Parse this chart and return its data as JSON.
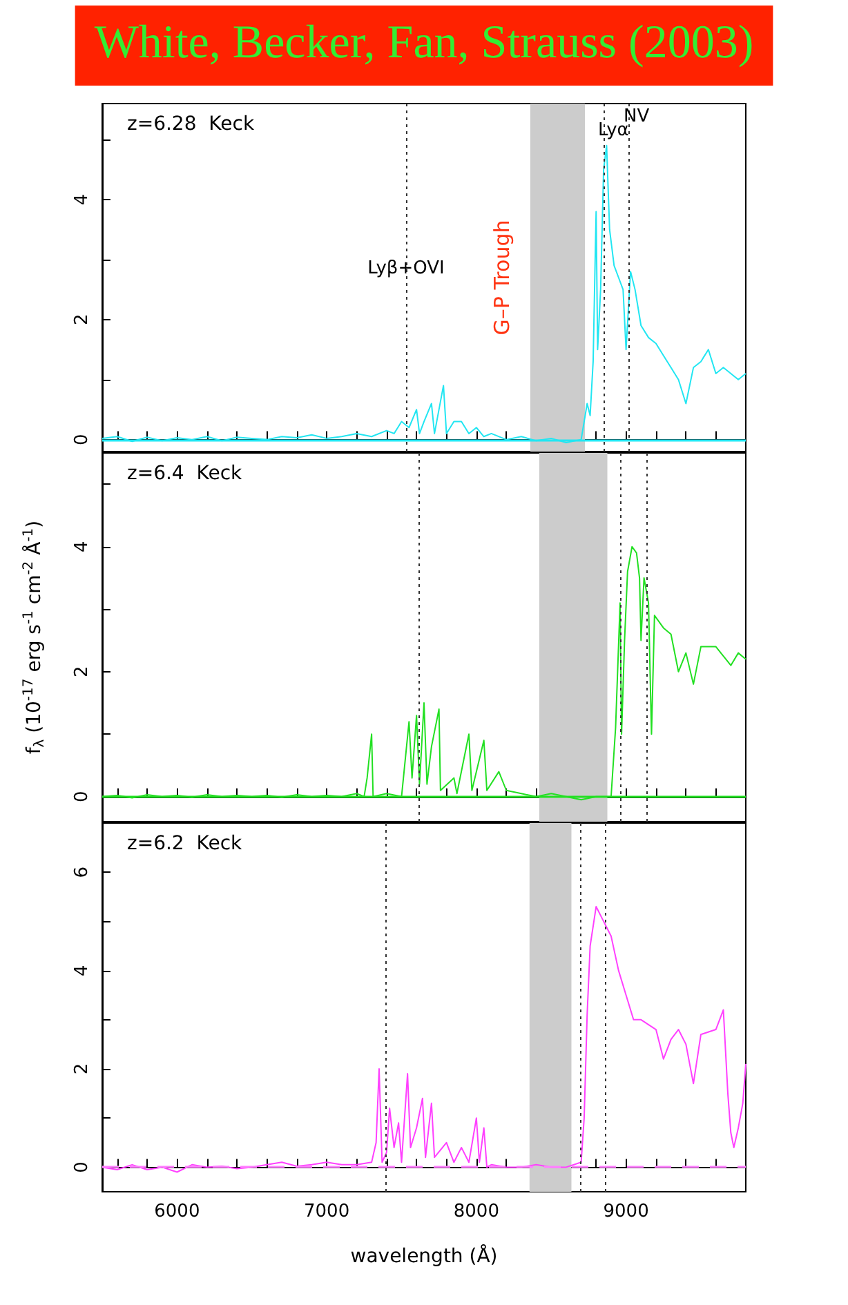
{
  "chart_data": [
    {
      "type": "line",
      "title": "White, Becker, Fan, Strauss (2003)",
      "annotations": [
        "z=6.28  Keck"
      ],
      "xlim": [
        5500,
        9800
      ],
      "xticks": [
        {
          "value": 5600,
          "label": null
        },
        {
          "value": 5800,
          "label": null
        },
        6000,
        {
          "value": 6200,
          "label": null
        },
        {
          "value": 6400,
          "label": null
        },
        {
          "value": 6600,
          "label": null
        },
        {
          "value": 6800,
          "label": null
        },
        7000,
        {
          "value": 7200,
          "label": null
        },
        {
          "value": 7400,
          "label": null
        },
        {
          "value": 7600,
          "label": null
        },
        {
          "value": 7800,
          "label": null
        },
        8000,
        {
          "value": 8200,
          "label": null
        },
        {
          "value": 8400,
          "label": null
        },
        {
          "value": 8600,
          "label": null
        },
        {
          "value": 8800,
          "label": null
        },
        9000,
        {
          "value": 9200,
          "label": null
        },
        {
          "value": 9400,
          "label": null
        },
        {
          "value": 9600,
          "label": null
        }
      ],
      "ylim": [
        -0.2,
        5.6
      ],
      "yticks": [
        0,
        {
          "value": 1,
          "label": null
        },
        2,
        {
          "value": 3,
          "label": null
        },
        4,
        {
          "value": 5,
          "label": null
        }
      ],
      "tick_labels": "y",
      "grid": false,
      "marker": "none",
      "line_style": "solid",
      "series": [
        {
          "color": "#22e6f2",
          "x": [
            5500,
            5600,
            5700,
            5800,
            5900,
            6000,
            6100,
            6200,
            6300,
            6400,
            6500,
            6600,
            6700,
            6800,
            6900,
            7000,
            7100,
            7200,
            7300,
            7400,
            7450,
            7500,
            7550,
            7600,
            7620,
            7650,
            7700,
            7720,
            7780,
            7800,
            7850,
            7900,
            7950,
            8000,
            8050,
            8100,
            8200,
            8300,
            8400,
            8500,
            8600,
            8700,
            8740,
            8760,
            8780,
            8800,
            8810,
            8830,
            8850,
            8870,
            8890,
            8920,
            8950,
            8980,
            9000,
            9030,
            9060,
            9100,
            9150,
            9200,
            9250,
            9300,
            9350,
            9400,
            9450,
            9500,
            9550,
            9600,
            9650,
            9700,
            9750,
            9800
          ],
          "values": [
            0.02,
            0.05,
            -0.03,
            0.04,
            -0.02,
            0.03,
            0.0,
            0.05,
            -0.02,
            0.04,
            0.02,
            0.0,
            0.05,
            0.03,
            0.08,
            0.02,
            0.05,
            0.1,
            0.05,
            0.15,
            0.1,
            0.3,
            0.2,
            0.5,
            0.1,
            0.3,
            0.6,
            0.1,
            0.9,
            0.1,
            0.3,
            0.3,
            0.1,
            0.2,
            0.05,
            0.1,
            0.0,
            0.05,
            -0.02,
            0.02,
            -0.05,
            0.0,
            0.6,
            0.4,
            1.3,
            3.8,
            1.5,
            2.5,
            4.5,
            4.9,
            3.5,
            2.9,
            2.7,
            2.5,
            1.5,
            2.8,
            2.5,
            1.9,
            1.7,
            1.6,
            1.4,
            1.2,
            1.0,
            0.6,
            1.2,
            1.3,
            1.5,
            1.1,
            1.2,
            1.1,
            1.0,
            1.1
          ]
        }
      ],
      "ref_lines": [
        {
          "axis": "x",
          "value": 7530,
          "label": "Lyβ+OVI",
          "color": "#333333",
          "line_style": "dotted"
        },
        {
          "axis": "x",
          "value": 8850,
          "label": "Lyα",
          "color": "#333333",
          "line_style": "dotted"
        },
        {
          "axis": "x",
          "value": 9020,
          "label": "NV",
          "color": "#333333",
          "line_style": "dotted"
        },
        {
          "axis": "y",
          "value": 0,
          "color": "#22e6f2",
          "line_style": "solid"
        }
      ],
      "bands": [
        {
          "axis": "x",
          "from": 8360,
          "to": 8725,
          "label": "G–P Trough",
          "color": "#cccccc"
        }
      ]
    },
    {
      "type": "line",
      "ylabel": "f$_{λ}$ (10$^{-17}$ erg s$^{-1}$ cm$^{-2}$ Å$^{-1}$)",
      "annotations": [
        "z=6.4  Keck"
      ],
      "xlim": [
        5500,
        9800
      ],
      "xticks": [
        {
          "value": 5600,
          "label": null
        },
        {
          "value": 5800,
          "label": null
        },
        6000,
        {
          "value": 6200,
          "label": null
        },
        {
          "value": 6400,
          "label": null
        },
        {
          "value": 6600,
          "label": null
        },
        {
          "value": 6800,
          "label": null
        },
        7000,
        {
          "value": 7200,
          "label": null
        },
        {
          "value": 7400,
          "label": null
        },
        {
          "value": 7600,
          "label": null
        },
        {
          "value": 7800,
          "label": null
        },
        8000,
        {
          "value": 8200,
          "label": null
        },
        {
          "value": 8400,
          "label": null
        },
        {
          "value": 8600,
          "label": null
        },
        {
          "value": 8800,
          "label": null
        },
        9000,
        {
          "value": 9200,
          "label": null
        },
        {
          "value": 9400,
          "label": null
        },
        {
          "value": 9600,
          "label": null
        }
      ],
      "ylim": [
        -0.4,
        5.5
      ],
      "yticks": [
        0,
        {
          "value": 1,
          "label": null
        },
        2,
        {
          "value": 3,
          "label": null
        },
        4,
        {
          "value": 5,
          "label": null
        }
      ],
      "tick_labels": "y",
      "grid": false,
      "marker": "none",
      "line_style": "solid",
      "series": [
        {
          "color": "#22e022",
          "x": [
            5500,
            5600,
            5700,
            5800,
            5900,
            6000,
            6100,
            6200,
            6300,
            6400,
            6500,
            6600,
            6700,
            6800,
            6900,
            7000,
            7100,
            7200,
            7250,
            7270,
            7300,
            7310,
            7400,
            7500,
            7550,
            7570,
            7600,
            7620,
            7650,
            7670,
            7700,
            7750,
            7760,
            7850,
            7870,
            7950,
            7970,
            8050,
            8070,
            8150,
            8200,
            8300,
            8400,
            8500,
            8600,
            8700,
            8800,
            8900,
            8930,
            8960,
            8970,
            8990,
            9010,
            9040,
            9070,
            9090,
            9100,
            9120,
            9150,
            9170,
            9190,
            9250,
            9300,
            9350,
            9400,
            9450,
            9500,
            9600,
            9700,
            9750,
            9800
          ],
          "values": [
            0.0,
            0.02,
            -0.02,
            0.03,
            0.0,
            0.02,
            -0.01,
            0.03,
            0.0,
            0.02,
            0.0,
            0.02,
            -0.01,
            0.03,
            0.0,
            0.02,
            0.0,
            0.05,
            0.0,
            0.3,
            1.0,
            0.0,
            0.05,
            0.0,
            1.2,
            0.3,
            1.3,
            0.2,
            1.5,
            0.2,
            0.8,
            1.4,
            0.1,
            0.3,
            0.05,
            1.0,
            0.1,
            0.9,
            0.1,
            0.4,
            0.1,
            0.05,
            0.0,
            0.05,
            0.0,
            -0.05,
            0.0,
            0.0,
            1.1,
            3.1,
            1.0,
            2.5,
            3.6,
            4.0,
            3.9,
            3.5,
            2.5,
            3.5,
            3.1,
            1.0,
            2.9,
            2.7,
            2.6,
            2.0,
            2.3,
            1.8,
            2.4,
            2.4,
            2.1,
            2.3,
            2.2
          ]
        }
      ],
      "ref_lines": [
        {
          "axis": "x",
          "value": 7615,
          "color": "#333333",
          "line_style": "dotted"
        },
        {
          "axis": "x",
          "value": 8965,
          "color": "#333333",
          "line_style": "dotted"
        },
        {
          "axis": "x",
          "value": 9135,
          "color": "#333333",
          "line_style": "dotted"
        },
        {
          "axis": "y",
          "value": 0,
          "color": "#22e022",
          "line_style": "solid"
        }
      ],
      "bands": [
        {
          "axis": "x",
          "from": 8420,
          "to": 8875,
          "color": "#cccccc"
        }
      ]
    },
    {
      "type": "line",
      "xlabel": "wavelength (Å)",
      "annotations": [
        "z=6.2  Keck"
      ],
      "xlim": [
        5500,
        9800
      ],
      "xticks": [
        {
          "value": 5600,
          "label": null
        },
        {
          "value": 5800,
          "label": null
        },
        6000,
        {
          "value": 6200,
          "label": null
        },
        {
          "value": 6400,
          "label": null
        },
        {
          "value": 6600,
          "label": null
        },
        {
          "value": 6800,
          "label": null
        },
        7000,
        {
          "value": 7200,
          "label": null
        },
        {
          "value": 7400,
          "label": null
        },
        {
          "value": 7600,
          "label": null
        },
        {
          "value": 7800,
          "label": null
        },
        8000,
        {
          "value": 8200,
          "label": null
        },
        {
          "value": 8400,
          "label": null
        },
        {
          "value": 8600,
          "label": null
        },
        {
          "value": 8800,
          "label": null
        },
        9000,
        {
          "value": 9200,
          "label": null
        },
        {
          "value": 9400,
          "label": null
        },
        {
          "value": 9600,
          "label": null
        }
      ],
      "ylim": [
        -0.5,
        7
      ],
      "yticks": [
        0,
        {
          "value": 1,
          "label": null
        },
        2,
        {
          "value": 3,
          "label": null
        },
        4,
        {
          "value": 5,
          "label": null
        },
        6
      ],
      "grid": false,
      "marker": "none",
      "line_style": "solid",
      "series": [
        {
          "color": "#ff40ff",
          "x": [
            5500,
            5600,
            5700,
            5800,
            5900,
            6000,
            6100,
            6200,
            6300,
            6400,
            6500,
            6600,
            6700,
            6800,
            6900,
            7000,
            7100,
            7200,
            7300,
            7330,
            7350,
            7370,
            7400,
            7420,
            7450,
            7480,
            7500,
            7540,
            7560,
            7600,
            7640,
            7660,
            7700,
            7720,
            7800,
            7850,
            7900,
            7950,
            8000,
            8020,
            8050,
            8070,
            8100,
            8200,
            8300,
            8400,
            8500,
            8600,
            8700,
            8720,
            8740,
            8760,
            8800,
            8850,
            8900,
            8950,
            9000,
            9050,
            9100,
            9200,
            9250,
            9300,
            9350,
            9400,
            9450,
            9500,
            9600,
            9650,
            9680,
            9700,
            9720,
            9750,
            9780,
            9800
          ],
          "values": [
            0.0,
            -0.05,
            0.05,
            -0.05,
            0.0,
            -0.1,
            0.05,
            0.0,
            0.02,
            -0.03,
            0.0,
            0.05,
            0.1,
            0.02,
            0.05,
            0.1,
            0.05,
            0.05,
            0.1,
            0.5,
            2.0,
            0.1,
            0.3,
            1.2,
            0.4,
            0.9,
            0.1,
            1.9,
            0.4,
            0.8,
            1.4,
            0.2,
            1.3,
            0.2,
            0.5,
            0.1,
            0.4,
            0.1,
            1.0,
            0.1,
            0.8,
            0.0,
            0.05,
            0.0,
            0.0,
            0.05,
            0.0,
            0.0,
            0.1,
            1.0,
            3.1,
            4.5,
            5.3,
            5.0,
            4.7,
            4.0,
            3.5,
            3.0,
            3.0,
            2.8,
            2.2,
            2.6,
            2.8,
            2.5,
            1.7,
            2.7,
            2.8,
            3.2,
            1.5,
            0.7,
            0.4,
            0.8,
            1.3,
            2.1
          ]
        }
      ],
      "ref_lines": [
        {
          "axis": "x",
          "value": 7390,
          "color": "#333333",
          "line_style": "dotted"
        },
        {
          "axis": "x",
          "value": 8695,
          "color": "#333333",
          "line_style": "dotted"
        },
        {
          "axis": "x",
          "value": 8865,
          "color": "#333333",
          "line_style": "dotted"
        },
        {
          "axis": "y",
          "value": 0,
          "color": "#ff80ff",
          "line_style": "dashed"
        }
      ],
      "bands": [
        {
          "axis": "x",
          "from": 8355,
          "to": 8635,
          "color": "#cccccc"
        }
      ]
    }
  ]
}
